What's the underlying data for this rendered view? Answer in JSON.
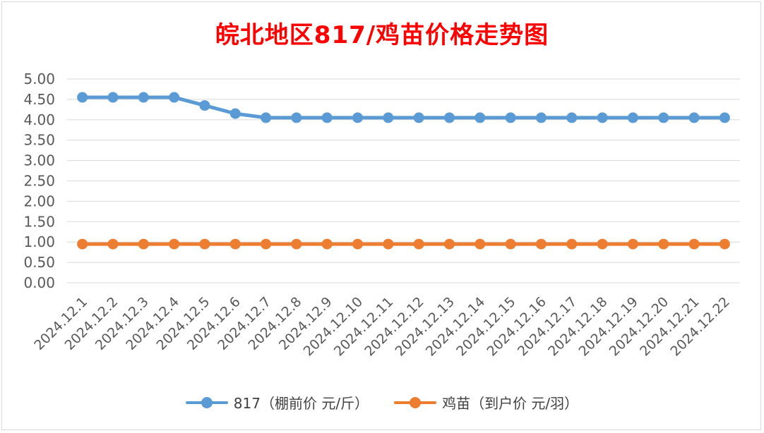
{
  "chart_data": {
    "type": "line",
    "title": "皖北地区817/鸡苗价格走势图",
    "categories": [
      "2024.12.1",
      "2024.12.2",
      "2024.12.3",
      "2024.12.4",
      "2024.12.5",
      "2024.12.6",
      "2024.12.7",
      "2024.12.8",
      "2024.12.9",
      "2024.12.10",
      "2024.12.11",
      "2024.12.12",
      "2024.12.13",
      "2024.12.14",
      "2024.12.15",
      "2024.12.16",
      "2024.12.17",
      "2024.12.18",
      "2024.12.19",
      "2024.12.20",
      "2024.12.21",
      "2024.12.22"
    ],
    "series": [
      {
        "name": "817（棚前价 元/斤）",
        "color": "#5b9bd5",
        "values": [
          4.55,
          4.55,
          4.55,
          4.55,
          4.35,
          4.15,
          4.05,
          4.05,
          4.05,
          4.05,
          4.05,
          4.05,
          4.05,
          4.05,
          4.05,
          4.05,
          4.05,
          4.05,
          4.05,
          4.05,
          4.05,
          4.05
        ]
      },
      {
        "name": "鸡苗（到户价 元/羽）",
        "color": "#ed7d31",
        "values": [
          0.95,
          0.95,
          0.95,
          0.95,
          0.95,
          0.95,
          0.95,
          0.95,
          0.95,
          0.95,
          0.95,
          0.95,
          0.95,
          0.95,
          0.95,
          0.95,
          0.95,
          0.95,
          0.95,
          0.95,
          0.95,
          0.95
        ]
      }
    ],
    "ylim": [
      0,
      5
    ],
    "yticks": [
      "0.00",
      "0.50",
      "1.00",
      "1.50",
      "2.00",
      "2.50",
      "3.00",
      "3.50",
      "4.00",
      "4.50",
      "5.00"
    ],
    "grid": true,
    "legend": "bottom"
  }
}
